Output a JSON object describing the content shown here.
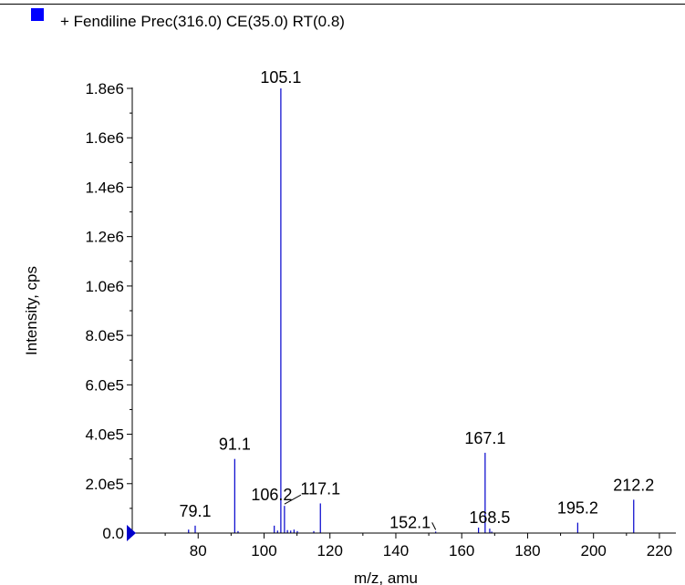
{
  "chart_data": {
    "type": "bar",
    "legend": {
      "label": "+ Fendiline Prec(316.0) CE(35.0) RT(0.8)",
      "color": "#0000ff",
      "placement": "top-left"
    },
    "xlabel": "m/z, amu",
    "ylabel": "Intensity, cps",
    "xlim": [
      60,
      225
    ],
    "ylim": [
      0,
      1800000
    ],
    "xticks": [
      80,
      100,
      120,
      140,
      160,
      180,
      200,
      220
    ],
    "yticks": [
      {
        "value": 0,
        "label": "0.0"
      },
      {
        "value": 200000,
        "label": "2.0e5"
      },
      {
        "value": 400000,
        "label": "4.0e5"
      },
      {
        "value": 600000,
        "label": "6.0e5"
      },
      {
        "value": 800000,
        "label": "8.0e5"
      },
      {
        "value": 1000000,
        "label": "1.0e6"
      },
      {
        "value": 1200000,
        "label": "1.2e6"
      },
      {
        "value": 1400000,
        "label": "1.4e6"
      },
      {
        "value": 1600000,
        "label": "1.6e6"
      },
      {
        "value": 1800000,
        "label": "1.8e6"
      }
    ],
    "color": "#0000cc",
    "peaks": [
      {
        "mz": 77.1,
        "intensity": 14000
      },
      {
        "mz": 79.1,
        "intensity": 30000,
        "label": "79.1"
      },
      {
        "mz": 91.1,
        "intensity": 300000,
        "label": "91.1"
      },
      {
        "mz": 92.1,
        "intensity": 8000
      },
      {
        "mz": 103.1,
        "intensity": 30000
      },
      {
        "mz": 104.1,
        "intensity": 10000
      },
      {
        "mz": 105.1,
        "intensity": 1800000,
        "label": "105.1"
      },
      {
        "mz": 106.2,
        "intensity": 110000,
        "label": "106.2"
      },
      {
        "mz": 107.1,
        "intensity": 12000
      },
      {
        "mz": 108.1,
        "intensity": 10000
      },
      {
        "mz": 109.1,
        "intensity": 14000
      },
      {
        "mz": 110.1,
        "intensity": 8000
      },
      {
        "mz": 115.1,
        "intensity": 8000
      },
      {
        "mz": 117.1,
        "intensity": 120000,
        "label": "117.1"
      },
      {
        "mz": 152.1,
        "intensity": 6000,
        "label": "152.1"
      },
      {
        "mz": 165.1,
        "intensity": 22000
      },
      {
        "mz": 167.1,
        "intensity": 325000,
        "label": "167.1"
      },
      {
        "mz": 168.5,
        "intensity": 18000,
        "label": "168.5"
      },
      {
        "mz": 169.1,
        "intensity": 6000
      },
      {
        "mz": 195.2,
        "intensity": 42000,
        "label": "195.2"
      },
      {
        "mz": 212.2,
        "intensity": 135000,
        "label": "212.2"
      }
    ]
  }
}
